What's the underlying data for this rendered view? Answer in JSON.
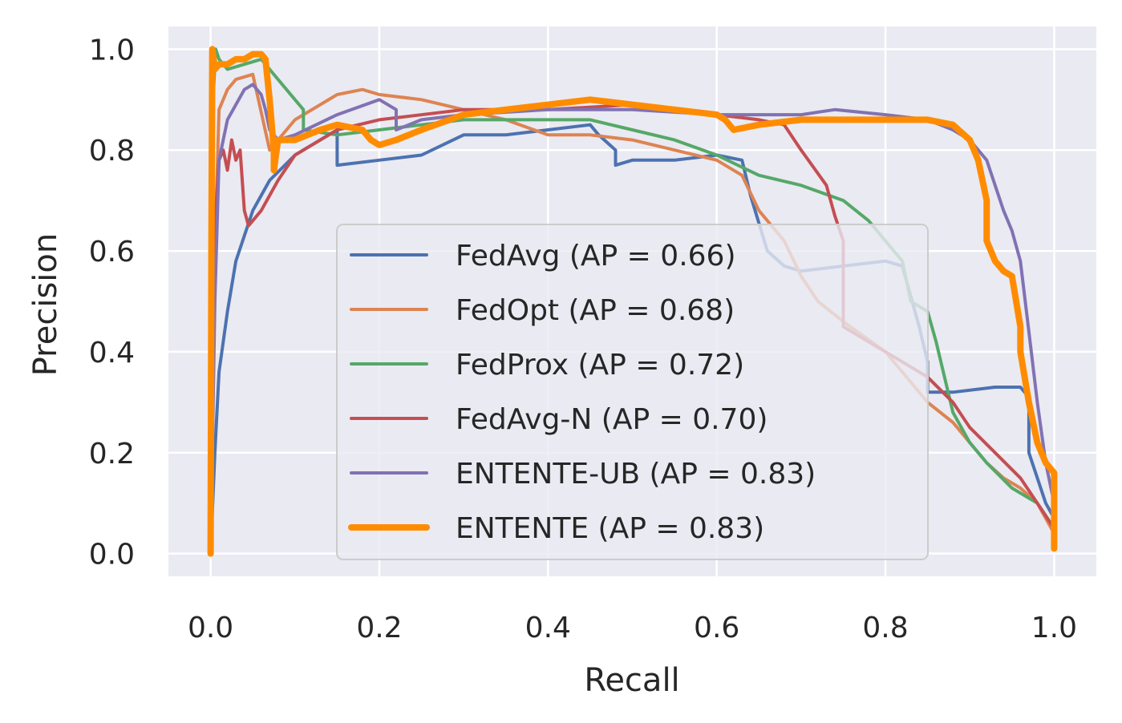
{
  "chart_data": {
    "type": "line",
    "xlabel": "Recall",
    "ylabel": "Precision",
    "xlim": [
      -0.05,
      1.05
    ],
    "ylim": [
      -0.045,
      1.045
    ],
    "xticks": [
      0.0,
      0.2,
      0.4,
      0.6,
      0.8,
      1.0
    ],
    "yticks": [
      0.0,
      0.2,
      0.4,
      0.6,
      0.8,
      1.0
    ],
    "xtick_labels": [
      "0.0",
      "0.2",
      "0.4",
      "0.6",
      "0.8",
      "1.0"
    ],
    "ytick_labels": [
      "0.0",
      "0.2",
      "0.4",
      "0.6",
      "0.8",
      "1.0"
    ],
    "grid": true,
    "legend_position": "lower-center",
    "series": [
      {
        "name": "FedAvg (AP = 0.66)",
        "color": "#4c72b0",
        "x": [
          0.0,
          0.005,
          0.01,
          0.02,
          0.03,
          0.05,
          0.07,
          0.1,
          0.13,
          0.15,
          0.15,
          0.2,
          0.25,
          0.3,
          0.35,
          0.4,
          0.45,
          0.46,
          0.48,
          0.48,
          0.5,
          0.55,
          0.6,
          0.63,
          0.64,
          0.66,
          0.68,
          0.7,
          0.75,
          0.8,
          0.82,
          0.84,
          0.85,
          0.85,
          0.88,
          0.93,
          0.96,
          0.97,
          0.97,
          0.98,
          0.99,
          1.0
        ],
        "y": [
          0.0,
          0.2,
          0.36,
          0.48,
          0.58,
          0.68,
          0.74,
          0.79,
          0.82,
          0.84,
          0.77,
          0.78,
          0.79,
          0.83,
          0.83,
          0.84,
          0.85,
          0.83,
          0.8,
          0.77,
          0.78,
          0.78,
          0.79,
          0.78,
          0.71,
          0.6,
          0.57,
          0.56,
          0.57,
          0.58,
          0.57,
          0.45,
          0.38,
          0.32,
          0.32,
          0.33,
          0.33,
          0.31,
          0.2,
          0.15,
          0.1,
          0.07
        ]
      },
      {
        "name": "FedOpt (AP = 0.68)",
        "color": "#dd8452",
        "x": [
          0.0,
          0.005,
          0.01,
          0.02,
          0.03,
          0.05,
          0.07,
          0.1,
          0.15,
          0.18,
          0.2,
          0.25,
          0.3,
          0.35,
          0.4,
          0.45,
          0.5,
          0.55,
          0.6,
          0.63,
          0.65,
          0.68,
          0.7,
          0.72,
          0.75,
          0.8,
          0.83,
          0.85,
          0.88,
          0.9,
          0.92,
          0.94,
          0.96,
          0.98,
          1.0
        ],
        "y": [
          0.0,
          0.6,
          0.88,
          0.92,
          0.94,
          0.95,
          0.8,
          0.86,
          0.91,
          0.92,
          0.91,
          0.9,
          0.88,
          0.86,
          0.83,
          0.83,
          0.82,
          0.8,
          0.78,
          0.75,
          0.68,
          0.62,
          0.55,
          0.5,
          0.46,
          0.4,
          0.34,
          0.3,
          0.26,
          0.22,
          0.18,
          0.15,
          0.13,
          0.1,
          0.04
        ]
      },
      {
        "name": "FedProx (AP = 0.72)",
        "color": "#55a868",
        "x": [
          0.0,
          0.003,
          0.006,
          0.01,
          0.02,
          0.04,
          0.06,
          0.08,
          0.1,
          0.11,
          0.11,
          0.15,
          0.2,
          0.25,
          0.3,
          0.35,
          0.4,
          0.45,
          0.5,
          0.55,
          0.6,
          0.65,
          0.7,
          0.75,
          0.78,
          0.8,
          0.82,
          0.83,
          0.85,
          0.86,
          0.87,
          0.88,
          0.9,
          0.92,
          0.95,
          0.98,
          1.0
        ],
        "y": [
          0.0,
          0.9,
          1.0,
          0.98,
          0.96,
          0.97,
          0.98,
          0.94,
          0.9,
          0.88,
          0.84,
          0.83,
          0.84,
          0.85,
          0.86,
          0.86,
          0.86,
          0.86,
          0.84,
          0.82,
          0.79,
          0.75,
          0.73,
          0.7,
          0.66,
          0.62,
          0.58,
          0.5,
          0.48,
          0.42,
          0.35,
          0.28,
          0.22,
          0.18,
          0.13,
          0.1,
          0.05
        ]
      },
      {
        "name": "FedAvg-N (AP = 0.70)",
        "color": "#c44e52",
        "x": [
          0.0,
          0.005,
          0.01,
          0.015,
          0.02,
          0.025,
          0.03,
          0.035,
          0.04,
          0.045,
          0.05,
          0.06,
          0.08,
          0.1,
          0.15,
          0.2,
          0.3,
          0.4,
          0.5,
          0.55,
          0.6,
          0.65,
          0.68,
          0.7,
          0.73,
          0.74,
          0.75,
          0.75,
          0.8,
          0.85,
          0.88,
          0.9,
          0.93,
          0.96,
          0.98,
          1.0
        ],
        "y": [
          0.0,
          0.65,
          0.78,
          0.8,
          0.76,
          0.82,
          0.78,
          0.8,
          0.68,
          0.65,
          0.66,
          0.68,
          0.74,
          0.79,
          0.84,
          0.86,
          0.88,
          0.88,
          0.89,
          0.88,
          0.87,
          0.86,
          0.85,
          0.8,
          0.73,
          0.67,
          0.62,
          0.45,
          0.4,
          0.35,
          0.3,
          0.25,
          0.2,
          0.15,
          0.1,
          0.05
        ]
      },
      {
        "name": "ENTENTE-UB (AP = 0.83)",
        "color": "#8172b3",
        "x": [
          0.0,
          0.005,
          0.01,
          0.02,
          0.03,
          0.04,
          0.05,
          0.06,
          0.065,
          0.07,
          0.08,
          0.1,
          0.15,
          0.2,
          0.22,
          0.22,
          0.25,
          0.3,
          0.4,
          0.5,
          0.6,
          0.65,
          0.7,
          0.74,
          0.8,
          0.85,
          0.88,
          0.9,
          0.92,
          0.93,
          0.94,
          0.95,
          0.96,
          0.97,
          0.98,
          0.99,
          1.0
        ],
        "y": [
          0.0,
          0.5,
          0.78,
          0.86,
          0.89,
          0.92,
          0.93,
          0.91,
          0.88,
          0.84,
          0.82,
          0.83,
          0.87,
          0.9,
          0.88,
          0.84,
          0.86,
          0.87,
          0.88,
          0.88,
          0.87,
          0.87,
          0.87,
          0.88,
          0.87,
          0.86,
          0.84,
          0.82,
          0.78,
          0.73,
          0.68,
          0.64,
          0.58,
          0.44,
          0.3,
          0.18,
          0.1
        ]
      },
      {
        "name": "ENTENTE (AP = 0.83)",
        "color": "#ff8c00",
        "x": [
          0.0,
          0.001,
          0.002,
          0.005,
          0.01,
          0.02,
          0.03,
          0.04,
          0.05,
          0.06,
          0.065,
          0.07,
          0.075,
          0.075,
          0.08,
          0.1,
          0.13,
          0.15,
          0.18,
          0.19,
          0.2,
          0.22,
          0.25,
          0.3,
          0.35,
          0.4,
          0.45,
          0.5,
          0.55,
          0.6,
          0.61,
          0.62,
          0.65,
          0.7,
          0.75,
          0.8,
          0.85,
          0.88,
          0.9,
          0.91,
          0.92,
          0.92,
          0.93,
          0.94,
          0.95,
          0.96,
          0.96,
          0.97,
          0.98,
          0.99,
          1.0,
          1.0
        ],
        "y": [
          0.0,
          0.6,
          1.0,
          0.96,
          0.97,
          0.97,
          0.98,
          0.98,
          0.99,
          0.99,
          0.98,
          0.9,
          0.8,
          0.76,
          0.82,
          0.82,
          0.84,
          0.85,
          0.84,
          0.82,
          0.81,
          0.82,
          0.84,
          0.87,
          0.88,
          0.89,
          0.9,
          0.89,
          0.88,
          0.87,
          0.86,
          0.84,
          0.85,
          0.86,
          0.86,
          0.86,
          0.86,
          0.85,
          0.82,
          0.78,
          0.7,
          0.62,
          0.58,
          0.56,
          0.55,
          0.45,
          0.4,
          0.3,
          0.22,
          0.18,
          0.16,
          0.01
        ]
      }
    ]
  }
}
